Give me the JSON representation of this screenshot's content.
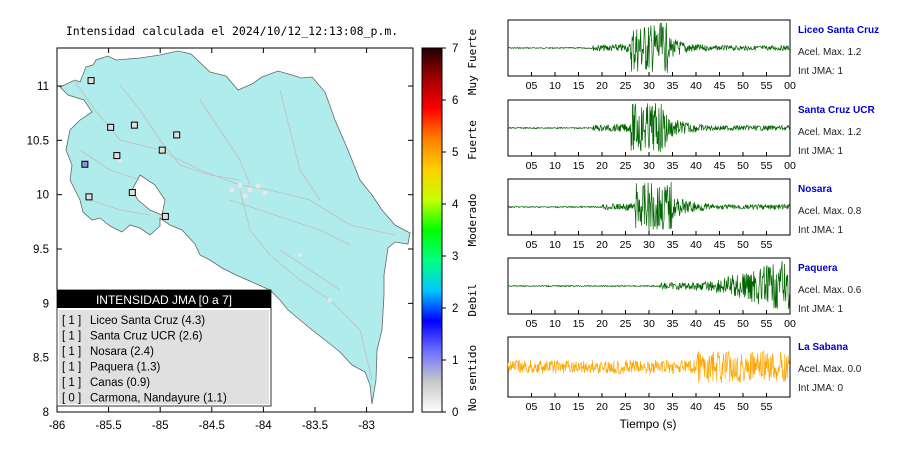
{
  "header": {
    "title": "Intensidad calculada el 2024/10/12_12:13:08_p.m."
  },
  "map": {
    "lon_ticks": [
      "-86",
      "-85.5",
      "-85",
      "-84.5",
      "-84",
      "-83.5",
      "-83"
    ],
    "lat_ticks": [
      "11",
      "10.5",
      "10",
      "9.5",
      "9",
      "8.5",
      "8"
    ],
    "lon_range": [
      -86,
      -82.55
    ],
    "lat_range": [
      8,
      11.35
    ],
    "land_color": "#b0ecec",
    "stations": [
      {
        "lon": -85.67,
        "lat": 11.05,
        "color": "#e0e0e0"
      },
      {
        "lon": -85.25,
        "lat": 10.64,
        "color": "#e0e0e0"
      },
      {
        "lon": -85.48,
        "lat": 10.62,
        "color": "#e0e0e0"
      },
      {
        "lon": -84.84,
        "lat": 10.55,
        "color": "#e0e0e0"
      },
      {
        "lon": -85.42,
        "lat": 10.36,
        "color": "#e0e0e0"
      },
      {
        "lon": -84.98,
        "lat": 10.41,
        "color": "#e0e0e0"
      },
      {
        "lon": -85.73,
        "lat": 10.28,
        "color": "#9090e0"
      },
      {
        "lon": -85.69,
        "lat": 9.98,
        "color": "#e0e0e0"
      },
      {
        "lon": -85.27,
        "lat": 10.02,
        "color": "#e0e0e0"
      },
      {
        "lon": -84.95,
        "lat": 9.8,
        "color": "#e0e0e0"
      }
    ]
  },
  "colorbar": {
    "ticks": [
      "0",
      "1",
      "2",
      "3",
      "4",
      "5",
      "6",
      "7"
    ],
    "categories": [
      "No sentido",
      "Debil",
      "Moderado",
      "Fuerte",
      "Muy Fuerte"
    ],
    "stops": [
      "#ffffff",
      "#c8c8c8",
      "#7070ff",
      "#0000ff",
      "#00c8ff",
      "#00ff80",
      "#00ff00",
      "#c8ff00",
      "#ffd000",
      "#ff8000",
      "#ff0000",
      "#a00000",
      "#200000"
    ]
  },
  "legend": {
    "title": "INTENSIDAD JMA [0 a 7]",
    "items": [
      {
        "level": "[ 1 ]",
        "name": "Liceo Santa Cruz (4.3)"
      },
      {
        "level": "[ 1 ]",
        "name": "Santa Cruz UCR (2.6)"
      },
      {
        "level": "[ 1 ]",
        "name": "Nosara (2.4)"
      },
      {
        "level": "[ 1 ]",
        "name": "Paquera (1.3)"
      },
      {
        "level": "[ 1 ]",
        "name": "Canas (0.9)"
      },
      {
        "level": "[ 0 ]",
        "name": "Carmona, Nandayure (1.1)"
      }
    ]
  },
  "waveforms": [
    {
      "station": "Liceo Santa Cruz",
      "accel": "Acel. Max. 1.2",
      "int": "Int JMA: 1",
      "color": "#006400",
      "ticks": [
        "05",
        "10",
        "15",
        "20",
        "25",
        "30",
        "35",
        "40",
        "45",
        "50",
        "55",
        "00"
      ],
      "onset": 18,
      "peak": 30,
      "late": 0
    },
    {
      "station": "Santa Cruz UCR",
      "accel": "Acel. Max. 1.2",
      "int": "Int JMA: 1",
      "color": "#006400",
      "ticks": [
        "05",
        "10",
        "15",
        "20",
        "25",
        "30",
        "35",
        "40",
        "45",
        "50",
        "55",
        "00"
      ],
      "onset": 18,
      "peak": 30,
      "late": 0
    },
    {
      "station": "Nosara",
      "accel": "Acel. Max. 0.8",
      "int": "Int JMA: 1",
      "color": "#006400",
      "ticks": [
        "05",
        "10",
        "15",
        "20",
        "25",
        "30",
        "35",
        "40",
        "45",
        "50",
        "55"
      ],
      "onset": 20,
      "peak": 31,
      "late": 0
    },
    {
      "station": "Paquera",
      "accel": "Acel. Max. 0.6",
      "int": "Int JMA: 1",
      "color": "#006400",
      "ticks": [
        "05",
        "10",
        "15",
        "20",
        "25",
        "30",
        "35",
        "40",
        "45",
        "50",
        "55",
        "00"
      ],
      "onset": 32,
      "peak": 0,
      "late": 56
    },
    {
      "station": "La Sabana",
      "accel": "Acel. Max. 0.0",
      "int": "Int JMA: 0",
      "color": "#ffa500",
      "ticks": [
        "05",
        "10",
        "15",
        "20",
        "25",
        "30",
        "35",
        "40",
        "45",
        "50",
        "55"
      ],
      "onset": 0,
      "peak": 0,
      "late": 46
    }
  ],
  "xlabel": "Tiempo (s)"
}
